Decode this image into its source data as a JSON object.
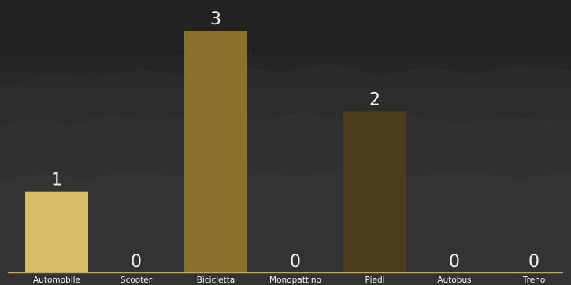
{
  "chart_data": {
    "type": "bar",
    "categories": [
      "Automobile",
      "Scooter",
      "Bicicletta",
      "Monopattino",
      "Piedi",
      "Autobus",
      "Treno"
    ],
    "values": [
      1,
      0,
      3,
      0,
      2,
      0,
      0
    ],
    "bar_colors": [
      "#d8bd66",
      "#d8bd66",
      "#8c712c",
      "#8c712c",
      "#4b3c1c",
      "#4b3c1c",
      "#4b3c1c"
    ],
    "title": "",
    "xlabel": "",
    "ylabel": "",
    "ylim": [
      0,
      3
    ],
    "grid": false,
    "legend": "none",
    "data_labels": true,
    "axis_color": "#c9a94e",
    "text_color": "#f2f2f2",
    "background": "#262626"
  }
}
